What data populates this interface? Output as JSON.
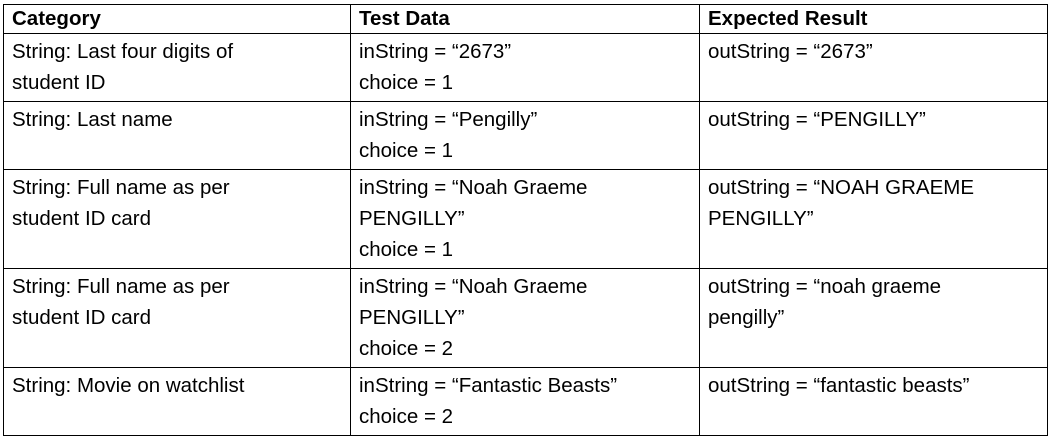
{
  "table": {
    "headers": [
      "Category",
      "Test Data",
      "Expected Result"
    ],
    "rows": [
      {
        "category": [
          "String: Last four digits of",
          "student ID"
        ],
        "test_data": [
          "inString = “2673”",
          "choice = 1"
        ],
        "expected": [
          "outString = “2673”"
        ]
      },
      {
        "category": [
          "String: Last name"
        ],
        "test_data": [
          "inString = “Pengilly”",
          "choice = 1"
        ],
        "expected": [
          "outString = “PENGILLY”"
        ]
      },
      {
        "category": [
          "String: Full name as per",
          "student ID card"
        ],
        "test_data": [
          "inString = “Noah Graeme",
          "PENGILLY”",
          "choice = 1"
        ],
        "expected": [
          "outString = “NOAH GRAEME",
          "PENGILLY”"
        ]
      },
      {
        "category": [
          "String: Full name as per",
          "student ID card"
        ],
        "test_data": [
          "inString = “Noah Graeme",
          "PENGILLY”",
          "choice = 2"
        ],
        "expected": [
          "outString = “noah graeme",
          "pengilly”"
        ]
      },
      {
        "category": [
          "String: Movie on watchlist"
        ],
        "test_data": [
          "inString = “Fantastic Beasts”",
          "choice = 2"
        ],
        "expected": [
          "outString = “fantastic beasts”"
        ]
      }
    ]
  }
}
